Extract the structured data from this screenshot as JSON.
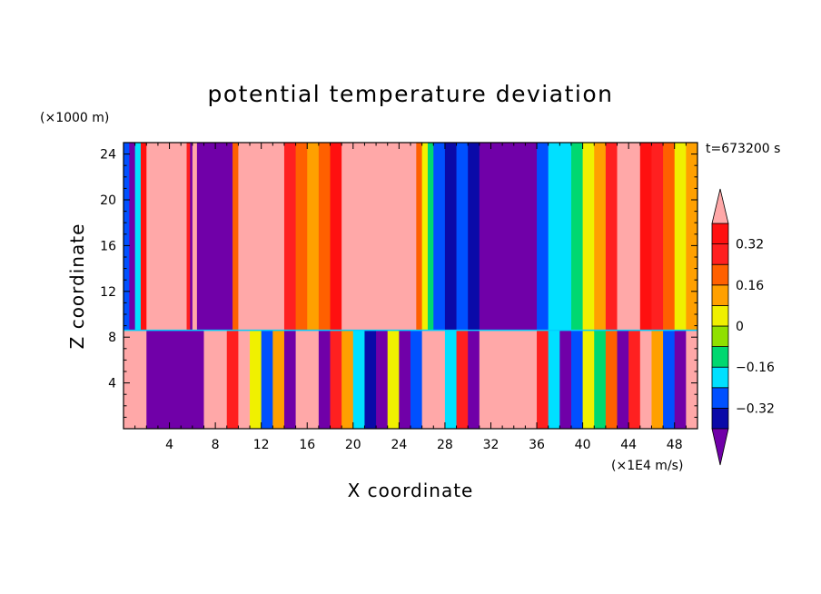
{
  "chart_data": {
    "type": "heatmap",
    "title": "potential temperature deviation",
    "xlabel": "X coordinate",
    "ylabel": "Z coordinate",
    "x_unit": "(×1E4 m/s)",
    "y_unit": "(×1000 m)",
    "time_label": "t=673200 s",
    "xlim": [
      0,
      50
    ],
    "ylim": [
      0,
      25
    ],
    "x_ticks": [
      4,
      8,
      12,
      16,
      20,
      24,
      28,
      32,
      36,
      40,
      44,
      48
    ],
    "x_tick_labels": [
      "4",
      "8",
      "12",
      "16",
      "20",
      "24",
      "28",
      "32",
      "36",
      "40",
      "44",
      "48"
    ],
    "y_ticks": [
      4,
      8,
      12,
      16,
      20,
      24
    ],
    "y_tick_labels": [
      "4",
      "8",
      "12",
      "16",
      "20",
      "24"
    ],
    "colorbar": {
      "levels": [
        -0.4,
        -0.32,
        -0.24,
        -0.16,
        -0.08,
        0,
        0.08,
        0.16,
        0.24,
        0.32,
        0.4
      ],
      "labels": [
        {
          "value": -0.32,
          "text": "−0.32"
        },
        {
          "value": -0.16,
          "text": "−0.16"
        },
        {
          "value": 0,
          "text": "0"
        },
        {
          "value": 0.16,
          "text": "0.16"
        },
        {
          "value": 0.32,
          "text": "0.32"
        }
      ],
      "colors": [
        "#0a0aa8",
        "#0050ff",
        "#00e0ff",
        "#00d870",
        "#90e000",
        "#f0f000",
        "#ffa000",
        "#ff6000",
        "#ff2020",
        "#ff1010"
      ],
      "under_color": "#7000a8",
      "over_color": "#ffa8a8"
    },
    "upper_layer_profile": [
      {
        "x": 0.0,
        "v": -0.3
      },
      {
        "x": 0.5,
        "v": -0.45
      },
      {
        "x": 1.0,
        "v": -0.2
      },
      {
        "x": 1.5,
        "v": 0.35
      },
      {
        "x": 2.0,
        "v": 0.45
      },
      {
        "x": 3.0,
        "v": 0.45
      },
      {
        "x": 4.0,
        "v": 0.45
      },
      {
        "x": 5.0,
        "v": 0.45
      },
      {
        "x": 5.5,
        "v": 0.3
      },
      {
        "x": 5.8,
        "v": -0.45
      },
      {
        "x": 6.0,
        "v": 0.45
      },
      {
        "x": 6.4,
        "v": -0.45
      },
      {
        "x": 8.0,
        "v": -0.45
      },
      {
        "x": 9.0,
        "v": -0.45
      },
      {
        "x": 9.5,
        "v": 0.2
      },
      {
        "x": 10.0,
        "v": 0.45
      },
      {
        "x": 12.0,
        "v": 0.45
      },
      {
        "x": 13.0,
        "v": 0.4
      },
      {
        "x": 14.0,
        "v": 0.3
      },
      {
        "x": 15.0,
        "v": 0.2
      },
      {
        "x": 16.0,
        "v": 0.1
      },
      {
        "x": 17.0,
        "v": 0.2
      },
      {
        "x": 18.0,
        "v": 0.32
      },
      {
        "x": 19.0,
        "v": 0.42
      },
      {
        "x": 20.0,
        "v": 0.45
      },
      {
        "x": 22.0,
        "v": 0.45
      },
      {
        "x": 24.0,
        "v": 0.45
      },
      {
        "x": 25.0,
        "v": 0.4
      },
      {
        "x": 25.5,
        "v": 0.2
      },
      {
        "x": 26.0,
        "v": 0.0
      },
      {
        "x": 26.5,
        "v": -0.16
      },
      {
        "x": 27.0,
        "v": -0.3
      },
      {
        "x": 28.0,
        "v": -0.4
      },
      {
        "x": 29.0,
        "v": -0.3
      },
      {
        "x": 30.0,
        "v": -0.4
      },
      {
        "x": 31.0,
        "v": -0.45
      },
      {
        "x": 33.0,
        "v": -0.45
      },
      {
        "x": 35.0,
        "v": -0.45
      },
      {
        "x": 36.0,
        "v": -0.3
      },
      {
        "x": 37.0,
        "v": -0.2
      },
      {
        "x": 38.0,
        "v": -0.2
      },
      {
        "x": 39.0,
        "v": -0.1
      },
      {
        "x": 40.0,
        "v": 0.0
      },
      {
        "x": 41.0,
        "v": 0.1
      },
      {
        "x": 42.0,
        "v": 0.3
      },
      {
        "x": 43.0,
        "v": 0.45
      },
      {
        "x": 44.0,
        "v": 0.45
      },
      {
        "x": 45.0,
        "v": 0.35
      },
      {
        "x": 46.0,
        "v": 0.3
      },
      {
        "x": 47.0,
        "v": 0.2
      },
      {
        "x": 48.0,
        "v": 0.0
      },
      {
        "x": 49.0,
        "v": 0.1
      },
      {
        "x": 50.0,
        "v": 0.0
      }
    ],
    "interface_height": 8.6,
    "lower_layer_profile": [
      {
        "x": 0.0,
        "v": 0.45
      },
      {
        "x": 1.5,
        "v": 0.45
      },
      {
        "x": 2.0,
        "v": -0.45
      },
      {
        "x": 5.0,
        "v": -0.45
      },
      {
        "x": 6.5,
        "v": -0.45
      },
      {
        "x": 7.0,
        "v": 0.45
      },
      {
        "x": 8.5,
        "v": 0.45
      },
      {
        "x": 9.0,
        "v": 0.3
      },
      {
        "x": 10.0,
        "v": 0.45
      },
      {
        "x": 11.0,
        "v": 0.0
      },
      {
        "x": 12.0,
        "v": -0.3
      },
      {
        "x": 13.0,
        "v": 0.1
      },
      {
        "x": 14.0,
        "v": -0.45
      },
      {
        "x": 15.0,
        "v": 0.45
      },
      {
        "x": 16.0,
        "v": 0.45
      },
      {
        "x": 17.0,
        "v": -0.45
      },
      {
        "x": 18.0,
        "v": 0.3
      },
      {
        "x": 19.0,
        "v": 0.1
      },
      {
        "x": 20.0,
        "v": -0.2
      },
      {
        "x": 21.0,
        "v": -0.4
      },
      {
        "x": 22.0,
        "v": -0.45
      },
      {
        "x": 23.0,
        "v": 0.0
      },
      {
        "x": 24.0,
        "v": -0.45
      },
      {
        "x": 25.0,
        "v": -0.3
      },
      {
        "x": 26.0,
        "v": 0.45
      },
      {
        "x": 27.0,
        "v": 0.45
      },
      {
        "x": 28.0,
        "v": -0.2
      },
      {
        "x": 29.0,
        "v": 0.3
      },
      {
        "x": 30.0,
        "v": -0.45
      },
      {
        "x": 31.0,
        "v": 0.45
      },
      {
        "x": 34.0,
        "v": 0.45
      },
      {
        "x": 35.0,
        "v": 0.45
      },
      {
        "x": 36.0,
        "v": 0.3
      },
      {
        "x": 37.0,
        "v": -0.2
      },
      {
        "x": 38.0,
        "v": -0.45
      },
      {
        "x": 39.0,
        "v": -0.3
      },
      {
        "x": 40.0,
        "v": 0.0
      },
      {
        "x": 41.0,
        "v": -0.16
      },
      {
        "x": 42.0,
        "v": 0.2
      },
      {
        "x": 43.0,
        "v": -0.45
      },
      {
        "x": 44.0,
        "v": 0.3
      },
      {
        "x": 45.0,
        "v": 0.45
      },
      {
        "x": 46.0,
        "v": 0.1
      },
      {
        "x": 47.0,
        "v": -0.3
      },
      {
        "x": 48.0,
        "v": -0.45
      },
      {
        "x": 49.0,
        "v": 0.45
      },
      {
        "x": 50.0,
        "v": 0.45
      }
    ]
  }
}
